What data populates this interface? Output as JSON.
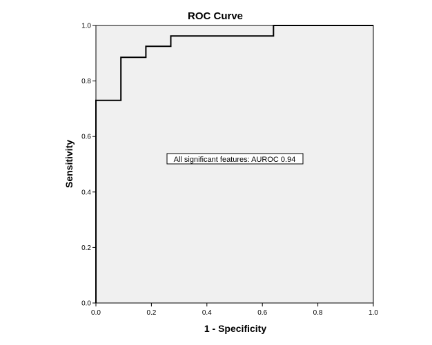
{
  "chart_data": {
    "type": "line",
    "title": "ROC Curve",
    "xlabel": "1 - Specificity",
    "ylabel": "Sensitivity",
    "xlim": [
      0.0,
      1.0
    ],
    "ylim": [
      0.0,
      1.0
    ],
    "x_ticks": [
      "0.0",
      "0.2",
      "0.4",
      "0.6",
      "0.8",
      "1.0"
    ],
    "y_ticks": [
      "0.0",
      "0.2",
      "0.4",
      "0.6",
      "0.8",
      "1.0"
    ],
    "grid": false,
    "legend": "none",
    "series": [
      {
        "x": [
          0.0,
          0.0,
          0.09,
          0.09,
          0.18,
          0.18,
          0.27,
          0.27,
          0.64,
          0.64,
          1.0
        ],
        "y": [
          0.0,
          0.73,
          0.73,
          0.885,
          0.885,
          0.925,
          0.925,
          0.962,
          0.962,
          1.0,
          1.0
        ]
      }
    ],
    "annotation": "All significant features: AUROC 0.94",
    "colors": {
      "plot_background": "#f0f0f0",
      "line": "#000000"
    }
  }
}
